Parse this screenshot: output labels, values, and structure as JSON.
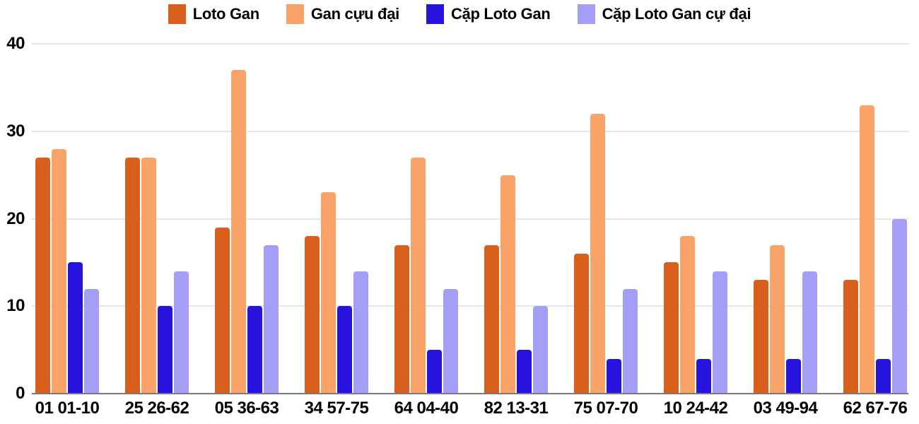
{
  "chart_data": {
    "type": "bar",
    "title": "",
    "xlabel": "",
    "ylabel": "",
    "categories": [
      "01 01-10",
      "25 26-62",
      "05 36-63",
      "34 57-75",
      "64 04-40",
      "82 13-31",
      "75 07-70",
      "10 24-42",
      "03 49-94",
      "62 67-76"
    ],
    "series": [
      {
        "name": "Loto Gan",
        "color": "#D9601C",
        "values": [
          27,
          27,
          19,
          18,
          17,
          17,
          16,
          15,
          13,
          13
        ]
      },
      {
        "name": "Gan cựu đại",
        "color": "#F9A369",
        "values": [
          28,
          27,
          37,
          23,
          27,
          25,
          32,
          18,
          17,
          33
        ]
      },
      {
        "name": "Cặp Loto Gan",
        "color": "#2614DE",
        "values": [
          15,
          10,
          10,
          10,
          5,
          5,
          4,
          4,
          4,
          4
        ]
      },
      {
        "name": "Cặp Loto Gan cự đại",
        "color": "#A49EF7",
        "values": [
          12,
          14,
          17,
          14,
          12,
          10,
          12,
          14,
          14,
          20
        ]
      }
    ],
    "y_ticks": [
      0,
      10,
      20,
      30,
      40
    ],
    "ylim": [
      0,
      40
    ],
    "legend_position": "top",
    "grid": true,
    "gridline_color": "#E6E6E6",
    "axis_line_color": "#7A7A7A",
    "label_color": "#000000",
    "background_color": "#FFFFFF"
  }
}
